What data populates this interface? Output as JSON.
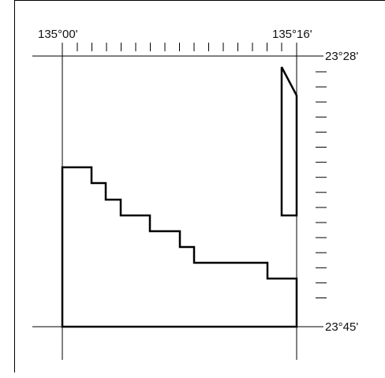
{
  "map": {
    "longitude_labels": {
      "west": "135°00'",
      "east": "135°16'"
    },
    "latitude_labels": {
      "north": "23°28'",
      "south": "23°45'"
    },
    "top_tick_count": 15,
    "right_tick_count": 16
  }
}
